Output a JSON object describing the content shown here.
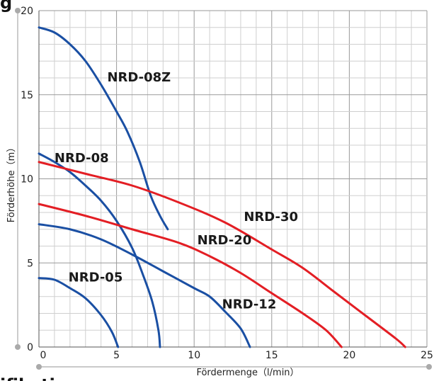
{
  "chart_data": {
    "type": "line",
    "title": "",
    "xlabel": "Fördermenge（l/min）",
    "ylabel": "Förderhöhe（m）",
    "xlim": [
      0,
      25
    ],
    "ylim": [
      0,
      20
    ],
    "x_ticks": [
      "0",
      "5",
      "10",
      "15",
      "20",
      "25"
    ],
    "y_ticks": [
      "0",
      "5",
      "10",
      "15",
      "20"
    ],
    "grid": true,
    "top_clipped_text": "g",
    "bottom_clipped_text": "ifikation",
    "series": [
      {
        "name": "NRD-08Z",
        "color": "#1a4fa3",
        "points": [
          [
            0,
            19.0
          ],
          [
            1,
            18.7
          ],
          [
            2,
            18.0
          ],
          [
            3,
            17.0
          ],
          [
            4,
            15.6
          ],
          [
            5,
            14.0
          ],
          [
            5.7,
            12.8
          ],
          [
            6.5,
            11.0
          ],
          [
            7.2,
            9.0
          ],
          [
            7.8,
            7.8
          ],
          [
            8.3,
            7.0
          ]
        ]
      },
      {
        "name": "NRD-08",
        "color": "#1a4fa3",
        "points": [
          [
            0,
            11.5
          ],
          [
            1,
            11.0
          ],
          [
            2,
            10.4
          ],
          [
            3,
            9.6
          ],
          [
            4,
            8.7
          ],
          [
            5,
            7.5
          ],
          [
            6,
            5.9
          ],
          [
            6.7,
            4.3
          ],
          [
            7.3,
            2.7
          ],
          [
            7.7,
            1.0
          ],
          [
            7.8,
            0
          ]
        ]
      },
      {
        "name": "NRD-05",
        "color": "#1a4fa3",
        "points": [
          [
            0,
            4.1
          ],
          [
            1,
            4.0
          ],
          [
            2,
            3.5
          ],
          [
            3,
            2.9
          ],
          [
            4,
            1.9
          ],
          [
            4.7,
            0.9
          ],
          [
            5.1,
            0
          ]
        ]
      },
      {
        "name": "NRD-12",
        "color": "#1a4fa3",
        "points": [
          [
            0,
            7.3
          ],
          [
            2,
            7.0
          ],
          [
            4,
            6.4
          ],
          [
            6,
            5.5
          ],
          [
            8,
            4.5
          ],
          [
            10,
            3.5
          ],
          [
            11,
            3.0
          ],
          [
            12,
            2.1
          ],
          [
            13,
            1.1
          ],
          [
            13.6,
            0
          ]
        ]
      },
      {
        "name": "NRD-20",
        "color": "#e31e24",
        "points": [
          [
            0,
            8.5
          ],
          [
            3,
            7.8
          ],
          [
            6,
            7.0
          ],
          [
            9,
            6.2
          ],
          [
            11,
            5.4
          ],
          [
            13,
            4.4
          ],
          [
            15,
            3.2
          ],
          [
            17,
            2.0
          ],
          [
            18.5,
            1.0
          ],
          [
            19.5,
            0
          ]
        ]
      },
      {
        "name": "NRD-30",
        "color": "#e31e24",
        "points": [
          [
            0,
            11.0
          ],
          [
            3,
            10.3
          ],
          [
            6,
            9.6
          ],
          [
            9,
            8.6
          ],
          [
            12,
            7.4
          ],
          [
            15,
            5.8
          ],
          [
            17,
            4.7
          ],
          [
            19,
            3.3
          ],
          [
            21,
            1.9
          ],
          [
            23,
            0.5
          ],
          [
            23.6,
            0
          ]
        ]
      }
    ],
    "labels": [
      {
        "text": "NRD-08Z",
        "x": 4.4,
        "y": 15.8
      },
      {
        "text": "NRD-08",
        "x": 1.0,
        "y": 11.0
      },
      {
        "text": "NRD-30",
        "x": 13.2,
        "y": 7.5
      },
      {
        "text": "NRD-20",
        "x": 10.2,
        "y": 6.1
      },
      {
        "text": "NRD-05",
        "x": 1.9,
        "y": 3.9
      },
      {
        "text": "NRD-12",
        "x": 11.8,
        "y": 2.3
      }
    ]
  }
}
